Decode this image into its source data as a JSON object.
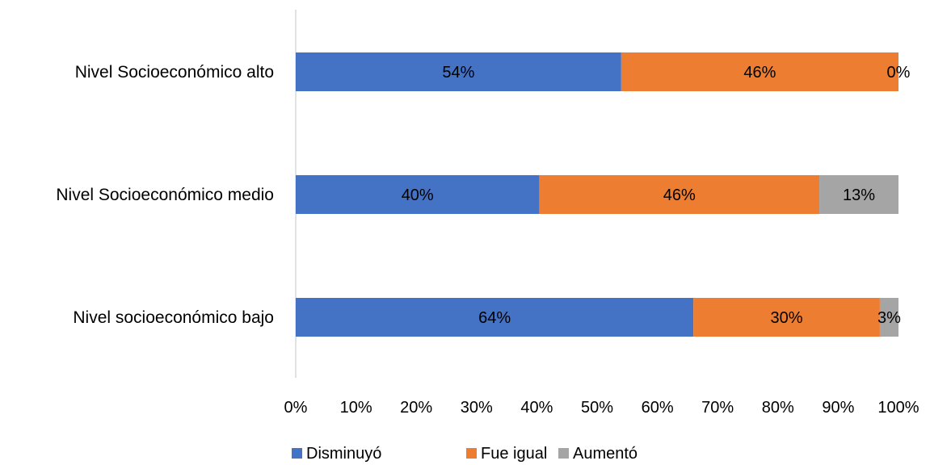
{
  "chart_data": {
    "type": "bar",
    "orientation": "horizontal",
    "stacked": "percent",
    "title": "",
    "xlabel": "",
    "ylabel": "",
    "xlim": [
      0,
      100
    ],
    "x_ticks": [
      "0%",
      "10%",
      "20%",
      "30%",
      "40%",
      "50%",
      "60%",
      "70%",
      "80%",
      "90%",
      "100%"
    ],
    "categories": [
      "Nivel Socioeconómico alto",
      "Nivel Socioeconómico medio",
      "Nivel socioeconómico bajo"
    ],
    "series": [
      {
        "name": "Disminuyó",
        "values": [
          54,
          40,
          64
        ],
        "labels": [
          "54%",
          "40%",
          "64%"
        ],
        "color": "#4472C4"
      },
      {
        "name": "Fue igual",
        "values": [
          46,
          46,
          30
        ],
        "labels": [
          "46%",
          "46%",
          "30%"
        ],
        "color": "#ED7D31"
      },
      {
        "name": "Aumentó",
        "values": [
          0,
          13,
          3
        ],
        "labels": [
          "0%",
          "13%",
          "3%"
        ],
        "color": "#A5A5A5"
      }
    ],
    "grid": false,
    "legend_position": "bottom"
  }
}
